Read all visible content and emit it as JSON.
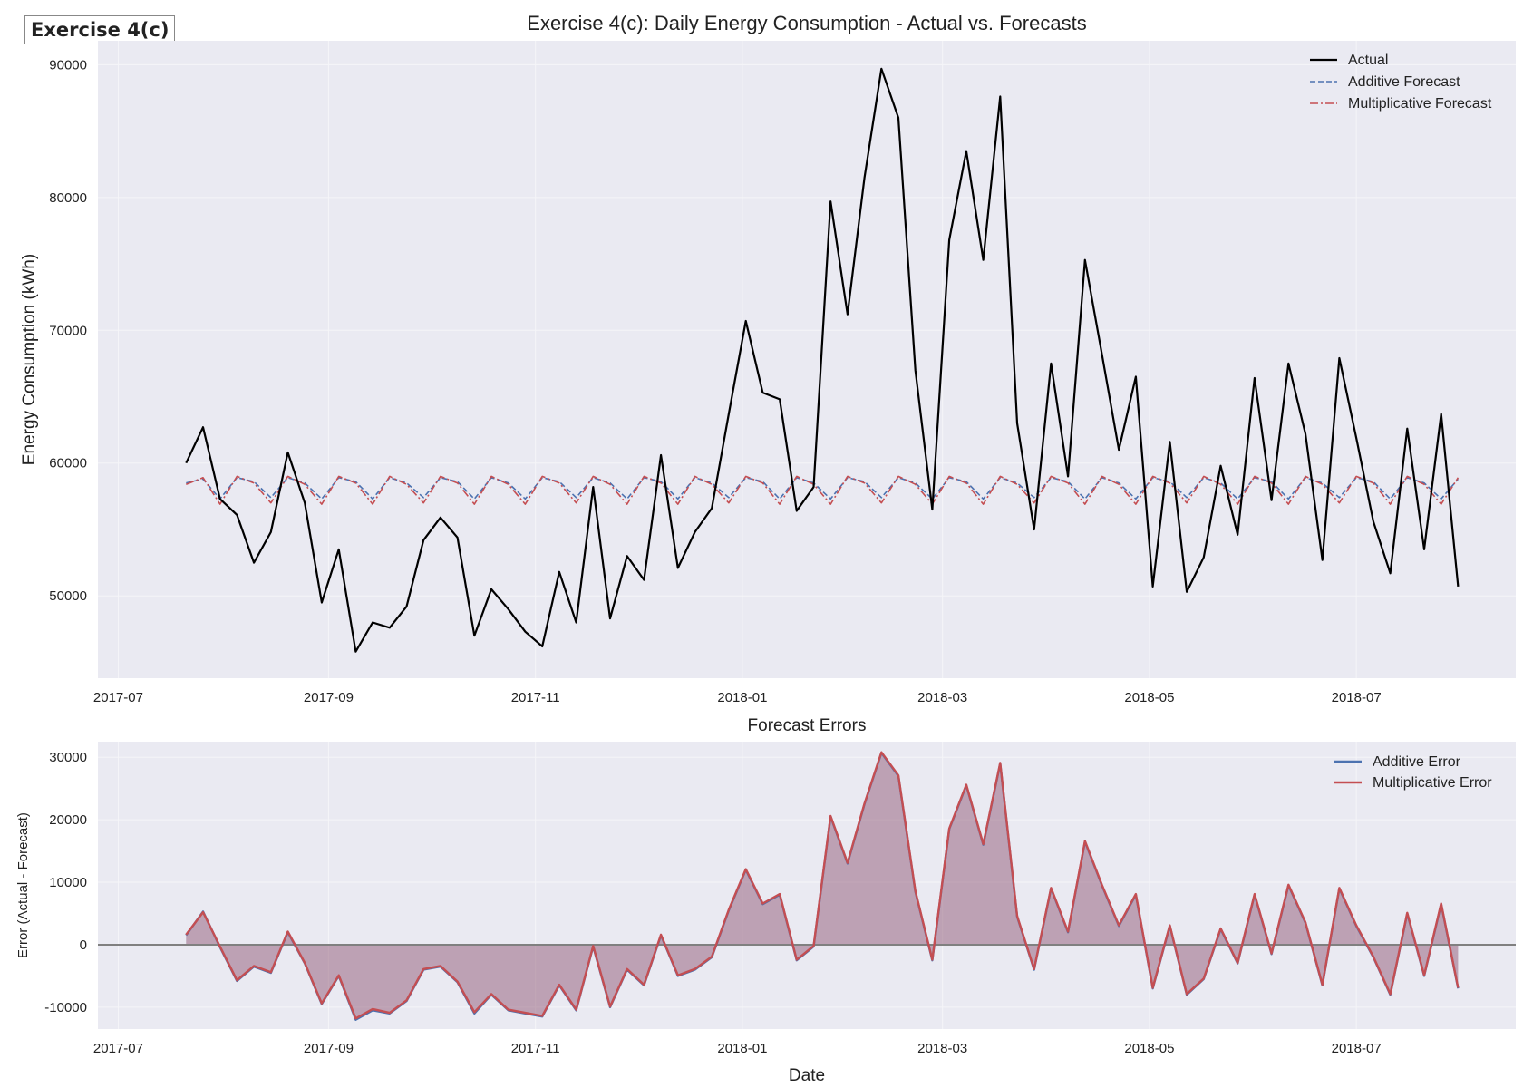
{
  "badge": "Exercise 4(c)",
  "colors": {
    "panel_bg": "#eaeaf2",
    "grid": "#f5f5f8",
    "actual": "#000000",
    "additive": "#4c72b0",
    "multiplicative": "#c44e52",
    "error_fill": "#a0526a",
    "zero_line": "#808080"
  },
  "chart_data": [
    {
      "type": "line",
      "title": "Exercise 4(c): Daily Energy Consumption - Actual vs. Forecasts",
      "xlabel": "",
      "ylabel": "Energy Consumption (kWh)",
      "x_ticks": [
        "2017-07",
        "2017-09",
        "2017-11",
        "2018-01",
        "2018-03",
        "2018-05",
        "2018-07"
      ],
      "y_ticks": [
        50000,
        60000,
        70000,
        80000,
        90000
      ],
      "xlim": [
        "2017-06-25",
        "2018-08-17"
      ],
      "ylim": [
        43800,
        91800
      ],
      "grid": true,
      "legend_position": "top-right",
      "x": [
        "2017-07-21",
        "2017-07-26",
        "2017-07-31",
        "2017-08-05",
        "2017-08-10",
        "2017-08-15",
        "2017-08-20",
        "2017-08-25",
        "2017-08-30",
        "2017-09-04",
        "2017-09-09",
        "2017-09-14",
        "2017-09-19",
        "2017-09-24",
        "2017-09-29",
        "2017-10-04",
        "2017-10-09",
        "2017-10-14",
        "2017-10-19",
        "2017-10-24",
        "2017-10-29",
        "2017-11-03",
        "2017-11-08",
        "2017-11-13",
        "2017-11-18",
        "2017-11-23",
        "2017-11-28",
        "2017-12-03",
        "2017-12-08",
        "2017-12-13",
        "2017-12-18",
        "2017-12-23",
        "2017-12-28",
        "2018-01-02",
        "2018-01-07",
        "2018-01-12",
        "2018-01-17",
        "2018-01-22",
        "2018-01-27",
        "2018-02-01",
        "2018-02-06",
        "2018-02-11",
        "2018-02-16",
        "2018-02-21",
        "2018-02-26",
        "2018-03-03",
        "2018-03-08",
        "2018-03-13",
        "2018-03-18",
        "2018-03-23",
        "2018-03-28",
        "2018-04-02",
        "2018-04-07",
        "2018-04-12",
        "2018-04-17",
        "2018-04-22",
        "2018-04-27",
        "2018-05-02",
        "2018-05-07",
        "2018-05-12",
        "2018-05-17",
        "2018-05-22",
        "2018-05-27",
        "2018-06-01",
        "2018-06-06",
        "2018-06-11",
        "2018-06-16",
        "2018-06-21",
        "2018-06-26",
        "2018-07-01",
        "2018-07-06",
        "2018-07-11",
        "2018-07-16",
        "2018-07-21",
        "2018-07-26",
        "2018-07-31"
      ],
      "series": [
        {
          "name": "Actual",
          "values": [
            60000,
            62700,
            57300,
            56100,
            52500,
            54800,
            60800,
            57000,
            49500,
            53500,
            45800,
            48000,
            47600,
            49200,
            54200,
            55900,
            54400,
            47000,
            50500,
            49000,
            47300,
            46200,
            51800,
            48000,
            58200,
            48300,
            53000,
            51200,
            60600,
            52100,
            54800,
            56600,
            63700,
            70700,
            65300,
            64800,
            56400,
            58200,
            79700,
            71200,
            81500,
            89700,
            86000,
            67000,
            56500,
            76800,
            83500,
            75300,
            87600,
            63000,
            55000,
            67500,
            59000,
            75300,
            68200,
            61000,
            66500,
            50700,
            61600,
            50300,
            52900,
            59800,
            54600,
            66400,
            57200,
            67500,
            62200,
            52700,
            67900,
            61900,
            55600,
            51700,
            62600,
            53500,
            63700,
            50700
          ]
        },
        {
          "name": "Additive Forecast",
          "values": [
            58500,
            58800,
            57300,
            58900,
            58600,
            57400,
            58900,
            58500,
            57300,
            58900,
            58600,
            57300,
            58900,
            58500,
            57400,
            58900,
            58600,
            57300,
            58900,
            58500,
            57300,
            58900,
            58600,
            57400,
            58900,
            58500,
            57300,
            58900,
            58600,
            57300,
            58900,
            58500,
            57400,
            58900,
            58600,
            57300,
            58900,
            58500,
            57300,
            58900,
            58600,
            57400,
            58900,
            58500,
            57300,
            58900,
            58600,
            57300,
            58900,
            58500,
            57400,
            58900,
            58600,
            57300,
            58900,
            58500,
            57300,
            58900,
            58600,
            57400,
            58900,
            58500,
            57300,
            58900,
            58600,
            57300,
            58900,
            58500,
            57400,
            58900,
            58600,
            57300,
            58900,
            58500,
            57300,
            58800
          ]
        },
        {
          "name": "Multiplicative Forecast",
          "values": [
            58400,
            58900,
            56900,
            59000,
            58500,
            57000,
            59000,
            58400,
            56900,
            59000,
            58500,
            56900,
            59000,
            58400,
            57000,
            59000,
            58500,
            56900,
            59000,
            58400,
            56900,
            59000,
            58500,
            57000,
            59000,
            58400,
            56900,
            59000,
            58500,
            56900,
            59000,
            58400,
            57000,
            59000,
            58500,
            56900,
            59000,
            58400,
            56900,
            59000,
            58500,
            57000,
            59000,
            58400,
            56900,
            59000,
            58500,
            56900,
            59000,
            58400,
            57000,
            59000,
            58500,
            56900,
            59000,
            58400,
            56900,
            59000,
            58500,
            57000,
            59000,
            58400,
            56900,
            59000,
            58500,
            56900,
            59000,
            58400,
            57000,
            59000,
            58500,
            56900,
            59000,
            58400,
            56900,
            58900
          ]
        }
      ]
    },
    {
      "type": "area",
      "title": "Forecast Errors",
      "xlabel": "Date",
      "ylabel": "Error (Actual - Forecast)",
      "x_ticks": [
        "2017-07",
        "2017-09",
        "2017-11",
        "2018-01",
        "2018-03",
        "2018-05",
        "2018-07"
      ],
      "y_ticks": [
        -10000,
        0,
        10000,
        20000,
        30000
      ],
      "xlim": [
        "2017-06-25",
        "2018-08-17"
      ],
      "ylim": [
        -13500,
        32500
      ],
      "grid": true,
      "legend_position": "top-right",
      "zero_line": true,
      "x": [
        "2017-07-21",
        "2017-07-26",
        "2017-07-31",
        "2017-08-05",
        "2017-08-10",
        "2017-08-15",
        "2017-08-20",
        "2017-08-25",
        "2017-08-30",
        "2017-09-04",
        "2017-09-09",
        "2017-09-14",
        "2017-09-19",
        "2017-09-24",
        "2017-09-29",
        "2017-10-04",
        "2017-10-09",
        "2017-10-14",
        "2017-10-19",
        "2017-10-24",
        "2017-10-29",
        "2017-11-03",
        "2017-11-08",
        "2017-11-13",
        "2017-11-18",
        "2017-11-23",
        "2017-11-28",
        "2017-12-03",
        "2017-12-08",
        "2017-12-13",
        "2017-12-18",
        "2017-12-23",
        "2017-12-28",
        "2018-01-02",
        "2018-01-07",
        "2018-01-12",
        "2018-01-17",
        "2018-01-22",
        "2018-01-27",
        "2018-02-01",
        "2018-02-06",
        "2018-02-11",
        "2018-02-16",
        "2018-02-21",
        "2018-02-26",
        "2018-03-03",
        "2018-03-08",
        "2018-03-13",
        "2018-03-18",
        "2018-03-23",
        "2018-03-28",
        "2018-04-02",
        "2018-04-07",
        "2018-04-12",
        "2018-04-17",
        "2018-04-22",
        "2018-04-27",
        "2018-05-02",
        "2018-05-07",
        "2018-05-12",
        "2018-05-17",
        "2018-05-22",
        "2018-05-27",
        "2018-06-01",
        "2018-06-06",
        "2018-06-11",
        "2018-06-16",
        "2018-06-21",
        "2018-06-26",
        "2018-07-01",
        "2018-07-06",
        "2018-07-11",
        "2018-07-16",
        "2018-07-21",
        "2018-07-26",
        "2018-07-31"
      ],
      "series": [
        {
          "name": "Additive Error",
          "values": [
            1500,
            5300,
            -400,
            -5800,
            -3500,
            -4500,
            2000,
            -3000,
            -9500,
            -5000,
            -12000,
            -10500,
            -11000,
            -9000,
            -4000,
            -3500,
            -6000,
            -11000,
            -8000,
            -10500,
            -11000,
            -11500,
            -6500,
            -10500,
            -300,
            -10000,
            -4000,
            -6500,
            1500,
            -5000,
            -4000,
            -2000,
            5500,
            12000,
            6500,
            8000,
            -2500,
            -300,
            20500,
            13000,
            22500,
            30700,
            27000,
            8500,
            -2500,
            18500,
            25500,
            16000,
            29000,
            4500,
            -4000,
            9000,
            2000,
            16500,
            9500,
            3000,
            8000,
            -7000,
            3000,
            -8000,
            -5500,
            2500,
            -3000,
            8000,
            -1500,
            9500,
            3500,
            -6500,
            9000,
            3000,
            -2000,
            -8000,
            5000,
            -5000,
            6500,
            -7000
          ]
        },
        {
          "name": "Multiplicative Error",
          "values": [
            1600,
            5200,
            -300,
            -5700,
            -3400,
            -4400,
            2100,
            -2900,
            -9400,
            -4900,
            -11800,
            -10300,
            -10900,
            -8900,
            -3900,
            -3400,
            -5900,
            -10800,
            -7900,
            -10400,
            -10900,
            -11400,
            -6400,
            -10400,
            -200,
            -9900,
            -3900,
            -6400,
            1600,
            -4900,
            -3900,
            -1900,
            5600,
            12100,
            6600,
            8100,
            -2400,
            -200,
            20600,
            13100,
            22600,
            30800,
            27100,
            8600,
            -2400,
            18600,
            25600,
            16100,
            29100,
            4600,
            -3900,
            9100,
            2100,
            16600,
            9600,
            3100,
            8100,
            -6900,
            3100,
            -7900,
            -5400,
            2600,
            -2900,
            8100,
            -1400,
            9600,
            3600,
            -6400,
            9100,
            3100,
            -1900,
            -7900,
            5100,
            -4900,
            6600,
            -6900
          ]
        }
      ]
    }
  ]
}
